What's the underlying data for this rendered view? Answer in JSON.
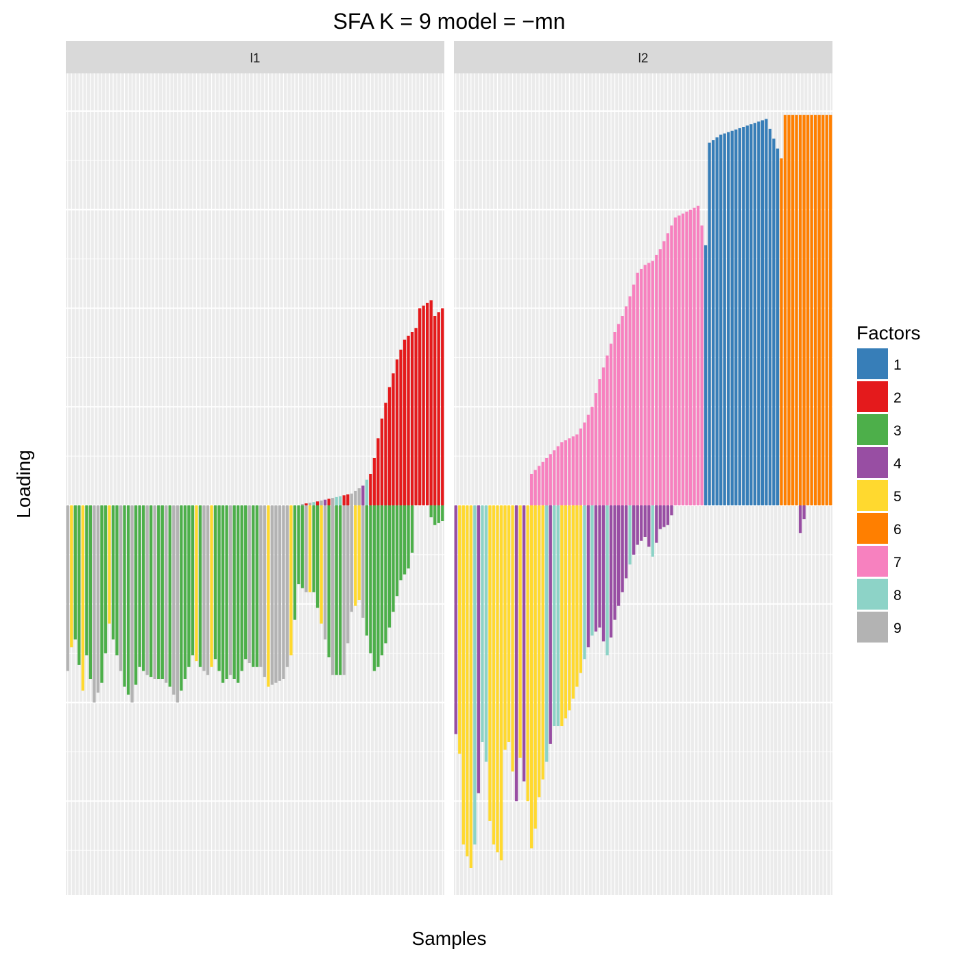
{
  "chart_data": {
    "type": "bar",
    "subtype": "stacked-diverging-faceted",
    "title": "SFA K = 9 model =  −mn",
    "xlabel": "Samples",
    "ylabel": "Loading",
    "x_ticks_shown": false,
    "y_ticks_shown": false,
    "y_scale_note": "no numeric axis printed; values estimated in relative units (positive above zero line, negative below)",
    "ylim": [
      -1.0,
      1.0
    ],
    "grid": true,
    "legend": {
      "title": "Factors",
      "position": "right",
      "items": [
        {
          "label": "1",
          "color": "#377eb8"
        },
        {
          "label": "2",
          "color": "#e41a1c"
        },
        {
          "label": "3",
          "color": "#4daf4a"
        },
        {
          "label": "4",
          "color": "#984ea3"
        },
        {
          "label": "5",
          "color": "#ffd92f"
        },
        {
          "label": "6",
          "color": "#ff7f00"
        },
        {
          "label": "7",
          "color": "#f781bf"
        },
        {
          "label": "8",
          "color": "#8dd3c7"
        },
        {
          "label": "9",
          "color": "#b3b3b3"
        }
      ]
    },
    "panels": [
      {
        "name": "l1",
        "n_samples": 100,
        "dominant_positive_factor": "2",
        "dominant_negative_factors": [
          "3",
          "9",
          "5"
        ],
        "positive_envelope": [
          [
            0,
            0
          ],
          [
            60,
            0
          ],
          [
            66,
            0.01
          ],
          [
            75,
            0.03
          ],
          [
            78,
            0.05
          ],
          [
            80,
            0.08
          ],
          [
            81,
            0.12
          ],
          [
            83,
            0.22
          ],
          [
            85,
            0.3
          ],
          [
            87,
            0.37
          ],
          [
            89,
            0.42
          ],
          [
            92,
            0.45
          ],
          [
            93,
            0.5
          ],
          [
            96,
            0.52
          ],
          [
            97,
            0.48
          ],
          [
            99,
            0.5
          ]
        ],
        "negative_envelope": [
          [
            0,
            -0.42
          ],
          [
            1,
            -0.36
          ],
          [
            2,
            -0.34
          ],
          [
            4,
            -0.47
          ],
          [
            5,
            -0.38
          ],
          [
            7,
            -0.5
          ],
          [
            9,
            -0.45
          ],
          [
            11,
            -0.3
          ],
          [
            13,
            -0.38
          ],
          [
            15,
            -0.46
          ],
          [
            17,
            -0.5
          ],
          [
            19,
            -0.41
          ],
          [
            21,
            -0.43
          ],
          [
            23,
            -0.44
          ],
          [
            25,
            -0.44
          ],
          [
            27,
            -0.46
          ],
          [
            29,
            -0.5
          ],
          [
            31,
            -0.44
          ],
          [
            33,
            -0.38
          ],
          [
            35,
            -0.41
          ],
          [
            37,
            -0.43
          ],
          [
            39,
            -0.39
          ],
          [
            41,
            -0.45
          ],
          [
            43,
            -0.43
          ],
          [
            45,
            -0.45
          ],
          [
            47,
            -0.39
          ],
          [
            49,
            -0.41
          ],
          [
            51,
            -0.41
          ],
          [
            53,
            -0.46
          ],
          [
            55,
            -0.45
          ],
          [
            57,
            -0.44
          ],
          [
            59,
            -0.38
          ],
          [
            61,
            -0.2
          ],
          [
            63,
            -0.22
          ],
          [
            65,
            -0.22
          ],
          [
            68,
            -0.34
          ],
          [
            70,
            -0.43
          ],
          [
            73,
            -0.43
          ],
          [
            75,
            -0.27
          ],
          [
            77,
            -0.24
          ],
          [
            79,
            -0.33
          ],
          [
            81,
            -0.42
          ],
          [
            82,
            -0.41
          ],
          [
            84,
            -0.35
          ],
          [
            86,
            -0.27
          ],
          [
            88,
            -0.19
          ],
          [
            90,
            -0.16
          ],
          [
            91,
            -0.12
          ],
          [
            92,
            0
          ],
          [
            95,
            0
          ],
          [
            96,
            -0.03
          ],
          [
            97,
            -0.05
          ],
          [
            99,
            -0.04
          ]
        ]
      },
      {
        "name": "l2",
        "n_samples": 100,
        "dominant_positive_factors": [
          "7",
          "1",
          "6"
        ],
        "dominant_negative_factors": [
          "5",
          "8",
          "4"
        ],
        "positive_envelope": [
          [
            0,
            0
          ],
          [
            19,
            0
          ],
          [
            20,
            0.08
          ],
          [
            22,
            0.1
          ],
          [
            25,
            0.13
          ],
          [
            28,
            0.16
          ],
          [
            32,
            0.18
          ],
          [
            34,
            0.21
          ],
          [
            36,
            0.25
          ],
          [
            38,
            0.32
          ],
          [
            40,
            0.38
          ],
          [
            42,
            0.44
          ],
          [
            44,
            0.48
          ],
          [
            46,
            0.53
          ],
          [
            48,
            0.59
          ],
          [
            50,
            0.61
          ],
          [
            52,
            0.62
          ],
          [
            54,
            0.65
          ],
          [
            56,
            0.69
          ],
          [
            58,
            0.73
          ],
          [
            60,
            0.74
          ],
          [
            62,
            0.75
          ],
          [
            64,
            0.76
          ],
          [
            66,
            0.66
          ],
          [
            67,
            0.92
          ],
          [
            70,
            0.94
          ],
          [
            73,
            0.95
          ],
          [
            76,
            0.96
          ],
          [
            79,
            0.97
          ],
          [
            82,
            0.98
          ],
          [
            86,
            0.88
          ],
          [
            87,
            0.99
          ],
          [
            91,
            0.99
          ],
          [
            99,
            0.99
          ]
        ],
        "negative_envelope": [
          [
            0,
            -0.58
          ],
          [
            1,
            -0.63
          ],
          [
            2,
            -0.86
          ],
          [
            4,
            -0.92
          ],
          [
            5,
            -0.86
          ],
          [
            7,
            -0.6
          ],
          [
            8,
            -0.65
          ],
          [
            9,
            -0.8
          ],
          [
            10,
            -0.86
          ],
          [
            11,
            -0.88
          ],
          [
            12,
            -0.9
          ],
          [
            13,
            -0.62
          ],
          [
            14,
            -0.6
          ],
          [
            16,
            -0.75
          ],
          [
            17,
            -0.64
          ],
          [
            18,
            -0.7
          ],
          [
            19,
            -0.75
          ],
          [
            20,
            -0.87
          ],
          [
            21,
            -0.82
          ],
          [
            22,
            -0.74
          ],
          [
            24,
            -0.65
          ],
          [
            26,
            -0.56
          ],
          [
            28,
            -0.56
          ],
          [
            30,
            -0.52
          ],
          [
            32,
            -0.46
          ],
          [
            34,
            -0.39
          ],
          [
            36,
            -0.33
          ],
          [
            38,
            -0.31
          ],
          [
            40,
            -0.38
          ],
          [
            42,
            -0.29
          ],
          [
            44,
            -0.22
          ],
          [
            46,
            -0.15
          ],
          [
            48,
            -0.1
          ],
          [
            50,
            -0.08
          ],
          [
            52,
            -0.13
          ],
          [
            54,
            -0.06
          ],
          [
            56,
            -0.05
          ],
          [
            58,
            0
          ],
          [
            90,
            0
          ],
          [
            91,
            -0.07
          ],
          [
            93,
            0
          ]
        ]
      }
    ]
  }
}
